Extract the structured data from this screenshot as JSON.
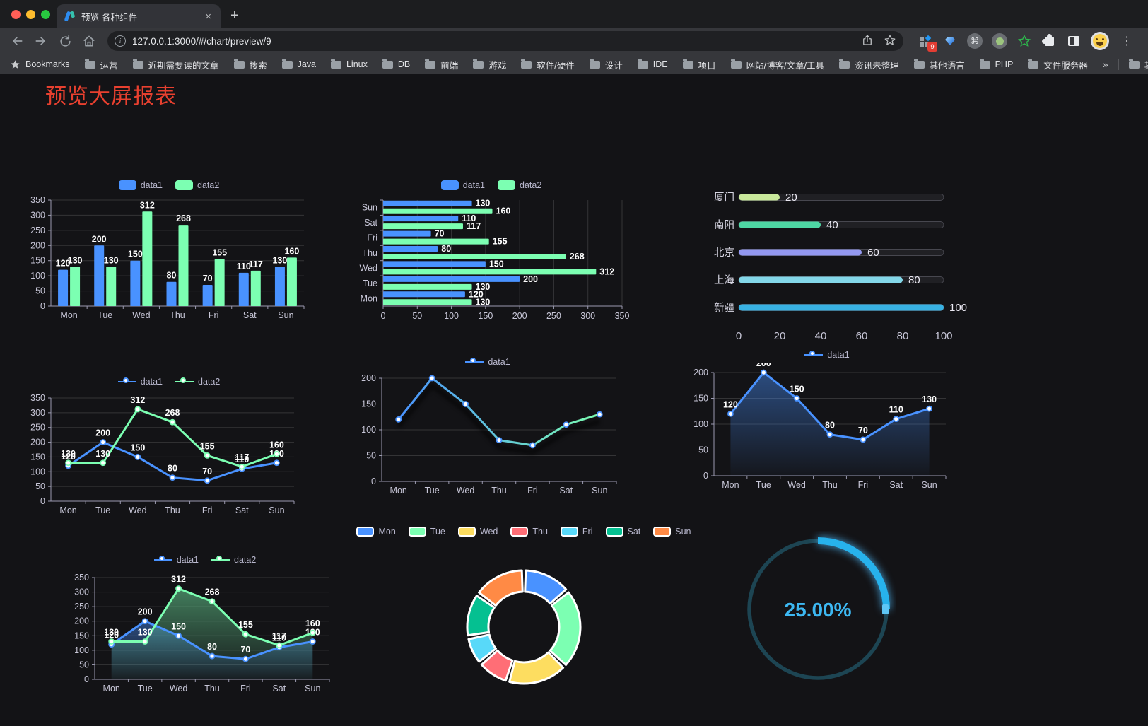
{
  "browser": {
    "tab": {
      "title": "预览-各种组件"
    },
    "close_tab_label": "×",
    "new_tab_label": "+",
    "url": "127.0.0.1:3000/#/chart/preview/9",
    "menu_glyph": "⋮",
    "cmd_glyph": "⌘",
    "info_glyph": "i",
    "extensions_badge": "9",
    "bookmarks": {
      "root_label": "Bookmarks",
      "folders": [
        "运营",
        "近期需要读的文章",
        "搜索",
        "Java",
        "Linux",
        "DB",
        "前端",
        "游戏",
        "软件/硬件",
        "设计",
        "IDE",
        "项目",
        "网站/博客/文章/工具",
        "资讯未整理",
        "其他语言",
        "PHP",
        "文件服务器"
      ],
      "overflow": "»",
      "other_label": "其他书签"
    }
  },
  "page": {
    "title": "预览大屏报表",
    "title_color": "#e8402f"
  },
  "colors": {
    "data1": "#4992ff",
    "data2": "#7cffb2",
    "axis_label": "#c8c7d8",
    "grid": "rgba(255,255,255,0.14)",
    "axis_line": "#9b9ab0",
    "value_label": "#ffffff"
  },
  "chart_data": [
    {
      "id": "bar-vertical",
      "type": "bar",
      "categories": [
        "Mon",
        "Tue",
        "Wed",
        "Thu",
        "Fri",
        "Sat",
        "Sun"
      ],
      "series": [
        {
          "name": "data1",
          "color": "#4992ff",
          "values": [
            120,
            200,
            150,
            80,
            70,
            110,
            130
          ]
        },
        {
          "name": "data2",
          "color": "#7cffb2",
          "values": [
            130,
            130,
            312,
            268,
            155,
            117,
            160
          ]
        }
      ],
      "ylim": [
        0,
        350
      ],
      "ytick": 50,
      "grid": true,
      "value_labels": true,
      "legend_position": "top"
    },
    {
      "id": "bar-horizontal",
      "type": "bar-horizontal",
      "categories": [
        "Mon",
        "Tue",
        "Wed",
        "Thu",
        "Fri",
        "Sat",
        "Sun"
      ],
      "series": [
        {
          "name": "data1",
          "color": "#4992ff",
          "values": [
            120,
            200,
            150,
            80,
            70,
            110,
            130
          ]
        },
        {
          "name": "data2",
          "color": "#7cffb2",
          "values": [
            130,
            130,
            312,
            268,
            155,
            117,
            160
          ]
        }
      ],
      "xlim": [
        0,
        350
      ],
      "xtick": 50,
      "grid": true,
      "value_labels": true,
      "legend_position": "top"
    },
    {
      "id": "progress-list",
      "type": "progress",
      "rows": [
        {
          "label": "厦门",
          "value": 20,
          "color": "#c9e89b"
        },
        {
          "label": "南阳",
          "value": 40,
          "color": "#4ed8a4"
        },
        {
          "label": "北京",
          "value": 60,
          "color": "#9398f0"
        },
        {
          "label": "上海",
          "value": 80,
          "color": "#83d7e8"
        },
        {
          "label": "新疆",
          "value": 100,
          "color": "#38b1e2"
        }
      ],
      "xlim": [
        0,
        100
      ],
      "xticks": [
        0,
        20,
        40,
        60,
        80,
        100
      ]
    },
    {
      "id": "line-dual",
      "type": "line",
      "categories": [
        "Mon",
        "Tue",
        "Wed",
        "Thu",
        "Fri",
        "Sat",
        "Sun"
      ],
      "series": [
        {
          "name": "data1",
          "color": "#4992ff",
          "values": [
            120,
            200,
            150,
            80,
            70,
            110,
            130
          ]
        },
        {
          "name": "data2",
          "color": "#7cffb2",
          "values": [
            130,
            130,
            312,
            268,
            155,
            117,
            160
          ]
        }
      ],
      "ylim": [
        0,
        350
      ],
      "ytick": 50,
      "value_labels": true,
      "legend_position": "top"
    },
    {
      "id": "line-gradient",
      "type": "line",
      "categories": [
        "Mon",
        "Tue",
        "Wed",
        "Thu",
        "Fri",
        "Sat",
        "Sun"
      ],
      "series": [
        {
          "name": "data1",
          "color": "#4992ff",
          "gradient_to": "#7cffb2",
          "shadow": true,
          "values": [
            120,
            200,
            150,
            80,
            70,
            110,
            130
          ]
        }
      ],
      "ylim": [
        0,
        200
      ],
      "ytick": 50,
      "value_labels": false,
      "legend_position": "top"
    },
    {
      "id": "line-area",
      "type": "line",
      "categories": [
        "Mon",
        "Tue",
        "Wed",
        "Thu",
        "Fri",
        "Sat",
        "Sun"
      ],
      "series": [
        {
          "name": "data1",
          "color": "#4992ff",
          "area": true,
          "values": [
            120,
            200,
            150,
            80,
            70,
            110,
            130
          ]
        }
      ],
      "ylim": [
        0,
        200
      ],
      "ytick": 50,
      "value_labels": true,
      "legend_position": "top"
    },
    {
      "id": "line-dual-area",
      "type": "line",
      "categories": [
        "Mon",
        "Tue",
        "Wed",
        "Thu",
        "Fri",
        "Sat",
        "Sun"
      ],
      "series": [
        {
          "name": "data1",
          "color": "#4992ff",
          "area": true,
          "values": [
            120,
            200,
            150,
            80,
            70,
            110,
            130
          ]
        },
        {
          "name": "data2",
          "color": "#7cffb2",
          "area": true,
          "values": [
            130,
            130,
            312,
            268,
            155,
            117,
            160
          ]
        }
      ],
      "ylim": [
        0,
        350
      ],
      "ytick": 50,
      "value_labels": true,
      "legend_position": "top"
    },
    {
      "id": "donut",
      "type": "pie",
      "categories": [
        "Mon",
        "Tue",
        "Wed",
        "Thu",
        "Fri",
        "Sat",
        "Sun"
      ],
      "values": [
        120,
        200,
        150,
        80,
        70,
        110,
        130
      ],
      "colors": [
        "#4992ff",
        "#7cffb2",
        "#fddd60",
        "#ff6e76",
        "#58d9f9",
        "#05c091",
        "#ff8a45"
      ],
      "legend_position": "top"
    },
    {
      "id": "gauge",
      "type": "gauge",
      "value": 25,
      "max": 100,
      "display": "25.00%",
      "color": "#27b2ec",
      "track_color": "#1d4553"
    }
  ]
}
